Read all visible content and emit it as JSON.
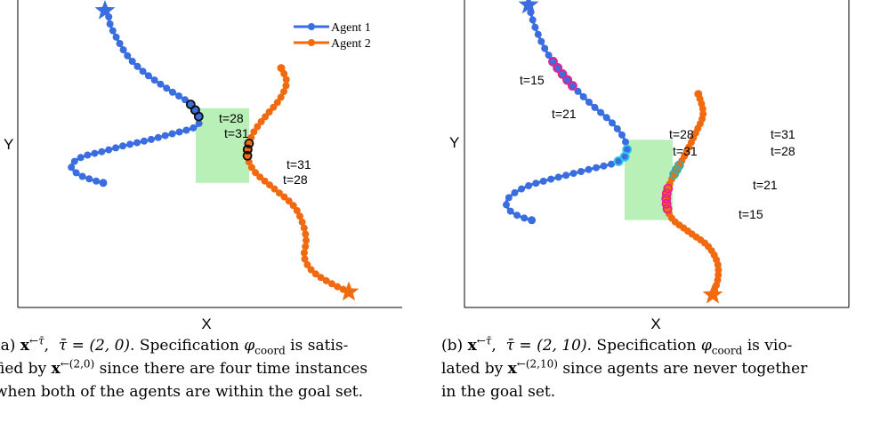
{
  "colors": {
    "agent1": "#3a6ee0",
    "agent2": "#f26a10",
    "goal_set": "#b8f0b8",
    "ring_black": "#111111",
    "ring_magenta": "#e8208a",
    "ring_cyan": "#30c4e8",
    "ring_teal": "#36b0a8"
  },
  "panels": [
    {
      "xlabel": "X",
      "ylabel": "Y",
      "legend": [
        "Agent 1",
        "Agent 2"
      ],
      "annotations": [
        "t=28",
        "t=31",
        "t=31",
        "t=28"
      ],
      "caption": {
        "prefix": "(a) ",
        "tau": "τ̄ = (2, 0)",
        "line1_rest": ". Specification ",
        "line1_tail": " is satis-",
        "line2_a": "fied by ",
        "line2_sup": "←(2,0)",
        "line2_b": " since there are four time instances",
        "line3": "when both of the agents are within the goal set."
      }
    },
    {
      "xlabel": "X",
      "ylabel": "Y",
      "annotations": [
        "t=15",
        "t=21",
        "t=28",
        "t=31",
        "t=31",
        "t=28",
        "t=21",
        "t=15"
      ],
      "caption": {
        "prefix": "(b) ",
        "tau": "τ̄ = (2, 10)",
        "line1_rest": ". Specification ",
        "line1_tail": " is vio-",
        "line2_a": "lated by ",
        "line2_sup": "←(2,10)",
        "line2_b": " since agents are never together",
        "line3": "in the goal set."
      }
    }
  ],
  "chart_data": [
    {
      "type": "line",
      "xlabel": "X",
      "ylabel": "Y",
      "legend_position": "top-right",
      "grid": false,
      "xlim": [
        0,
        10
      ],
      "ylim": [
        0,
        10
      ],
      "goal_set": {
        "x": [
          4.5,
          6.0
        ],
        "y": [
          4.0,
          6.6
        ]
      },
      "series": [
        {
          "name": "Agent 1",
          "x": [
            1.9,
            1.6,
            1.2,
            1.0,
            1.3,
            1.9,
            2.5,
            3.2,
            3.8,
            4.4,
            4.6,
            4.55,
            4.3,
            3.8,
            3.1,
            2.6,
            2.3,
            2.1,
            2.05,
            1.95
          ],
          "y": [
            4.0,
            4.1,
            4.3,
            4.6,
            4.9,
            5.1,
            5.3,
            5.5,
            5.7,
            5.9,
            6.1,
            6.4,
            6.8,
            7.2,
            7.8,
            8.4,
            9.0,
            9.5,
            9.8,
            10.0
          ],
          "start": "circle",
          "end": "star"
        },
        {
          "name": "Agent 2",
          "x": [
            6.9,
            7.05,
            6.85,
            6.45,
            6.1,
            5.95,
            6.15,
            6.7,
            7.25,
            7.5,
            7.6,
            7.55,
            7.8,
            8.3,
            8.8
          ],
          "y": [
            8.0,
            7.5,
            6.9,
            6.3,
            5.7,
            5.0,
            4.4,
            3.8,
            3.2,
            2.6,
            2.0,
            1.4,
            0.9,
            0.5,
            0.2
          ],
          "start": "circle",
          "end": "star"
        }
      ],
      "highlights": [
        {
          "series": "Agent 1",
          "range": "t=28 to t=31",
          "color": "black"
        },
        {
          "series": "Agent 2",
          "range": "t=28 to t=31",
          "color": "black"
        }
      ]
    },
    {
      "type": "line",
      "xlabel": "X",
      "ylabel": "Y",
      "grid": false,
      "xlim": [
        0,
        10
      ],
      "ylim": [
        0,
        10
      ],
      "goal_set": {
        "x": [
          4.5,
          6.0
        ],
        "y": [
          2.7,
          5.5
        ]
      },
      "series": [
        {
          "name": "Agent 1",
          "x": [
            1.6,
            1.3,
            0.95,
            0.8,
            1.0,
            1.5,
            2.1,
            2.8,
            3.5,
            4.2,
            4.55,
            4.5,
            4.1,
            3.4,
            2.7,
            2.1,
            1.75,
            1.6,
            1.5
          ],
          "y": [
            2.7,
            2.8,
            3.0,
            3.3,
            3.6,
            3.9,
            4.1,
            4.3,
            4.5,
            4.7,
            5.0,
            5.5,
            6.1,
            6.8,
            7.6,
            8.5,
            9.3,
            9.8,
            10.2
          ],
          "start": "circle",
          "end": "star"
        },
        {
          "name": "Agent 2",
          "x": [
            6.8,
            6.95,
            6.7,
            6.35,
            6.0,
            5.8,
            5.95,
            6.5,
            7.1,
            7.4,
            7.4,
            7.25
          ],
          "y": [
            7.1,
            6.4,
            5.7,
            4.9,
            4.2,
            3.5,
            2.8,
            2.3,
            1.8,
            1.2,
            0.6,
            0.1
          ],
          "start": "circle",
          "end": "star"
        }
      ],
      "highlights": [
        {
          "series": "Agent 1",
          "range": "t=15 to t=21",
          "color": "magenta"
        },
        {
          "series": "Agent 1",
          "range": "t=28 to t=31",
          "color": "cyan"
        },
        {
          "series": "Agent 2",
          "range": "t=28 to t=31",
          "color": "teal"
        },
        {
          "series": "Agent 2",
          "range": "t=15 to t=21",
          "color": "magenta"
        }
      ]
    }
  ]
}
